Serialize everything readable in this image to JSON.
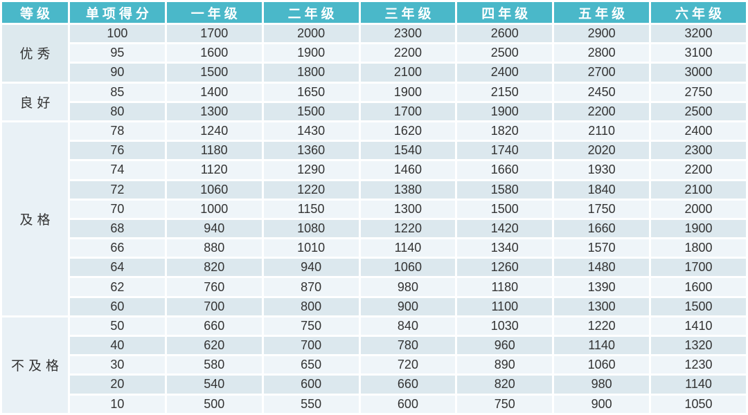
{
  "colors": {
    "header_bg": "#4ab8c9",
    "header_text": "#ffffff",
    "stripe_dark": "#dce8ee",
    "stripe_light": "#eff5f9",
    "grade_cell_bg": "#e9f1f6",
    "grade_cell_bg_first": "#dde9ee",
    "body_text": "#333333",
    "gridline": "#ffffff"
  },
  "chart_data": {
    "type": "table",
    "columns": [
      "等级",
      "单项得分",
      "一年级",
      "二年级",
      "三年级",
      "四年级",
      "五年级",
      "六年级"
    ],
    "groups": [
      {
        "label": "优秀",
        "rows": [
          [
            100,
            1700,
            2000,
            2300,
            2600,
            2900,
            3200
          ],
          [
            95,
            1600,
            1900,
            2200,
            2500,
            2800,
            3100
          ],
          [
            90,
            1500,
            1800,
            2100,
            2400,
            2700,
            3000
          ]
        ]
      },
      {
        "label": "良好",
        "rows": [
          [
            85,
            1400,
            1650,
            1900,
            2150,
            2450,
            2750
          ],
          [
            80,
            1300,
            1500,
            1700,
            1900,
            2200,
            2500
          ]
        ]
      },
      {
        "label": "及格",
        "rows": [
          [
            78,
            1240,
            1430,
            1620,
            1820,
            2110,
            2400
          ],
          [
            76,
            1180,
            1360,
            1540,
            1740,
            2020,
            2300
          ],
          [
            74,
            1120,
            1290,
            1460,
            1660,
            1930,
            2200
          ],
          [
            72,
            1060,
            1220,
            1380,
            1580,
            1840,
            2100
          ],
          [
            70,
            1000,
            1150,
            1300,
            1500,
            1750,
            2000
          ],
          [
            68,
            940,
            1080,
            1220,
            1420,
            1660,
            1900
          ],
          [
            66,
            880,
            1010,
            1140,
            1340,
            1570,
            1800
          ],
          [
            64,
            820,
            940,
            1060,
            1260,
            1480,
            1700
          ],
          [
            62,
            760,
            870,
            980,
            1180,
            1390,
            1600
          ],
          [
            60,
            700,
            800,
            900,
            1100,
            1300,
            1500
          ]
        ]
      },
      {
        "label": "不及格",
        "rows": [
          [
            50,
            660,
            750,
            840,
            1030,
            1220,
            1410
          ],
          [
            40,
            620,
            700,
            780,
            960,
            1140,
            1320
          ],
          [
            30,
            580,
            650,
            720,
            890,
            1060,
            1230
          ],
          [
            20,
            540,
            600,
            660,
            820,
            980,
            1140
          ],
          [
            10,
            500,
            550,
            600,
            750,
            900,
            1050
          ]
        ]
      }
    ]
  }
}
